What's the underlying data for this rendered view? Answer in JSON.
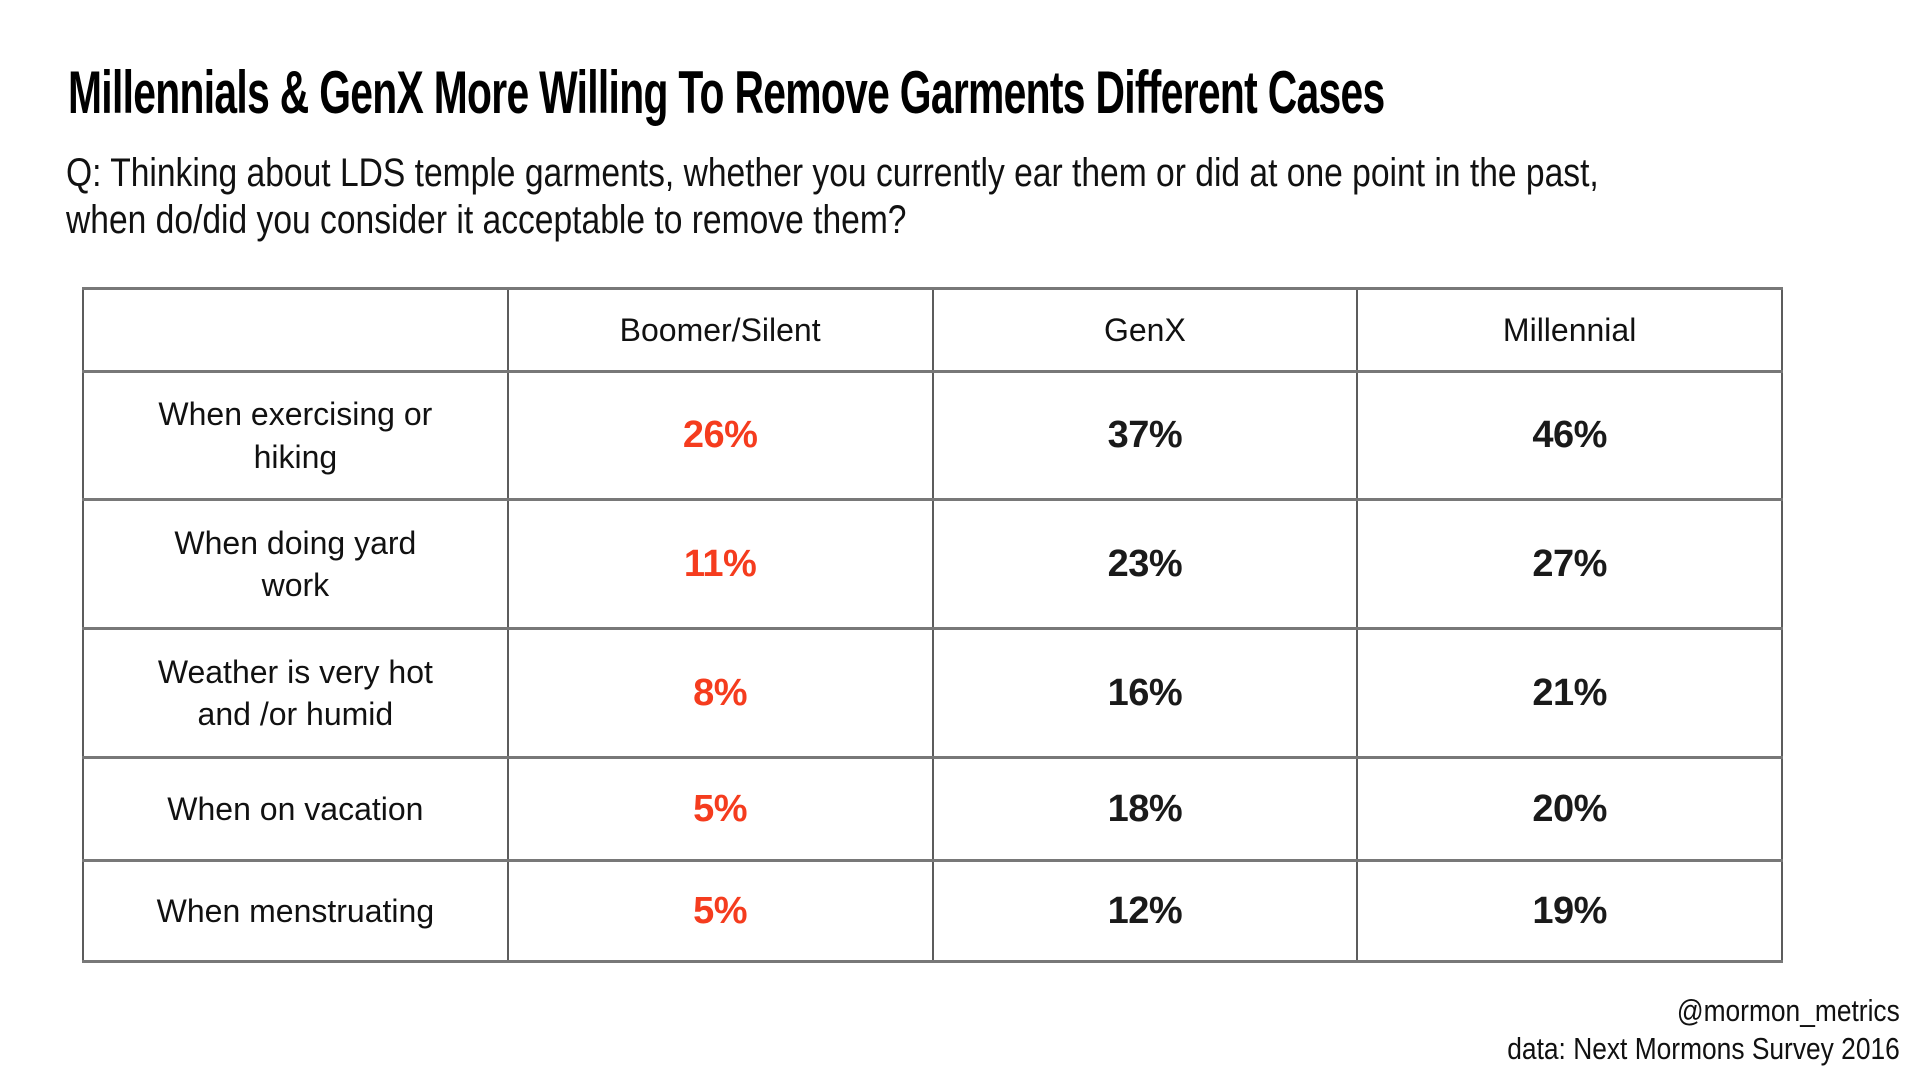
{
  "title": "Millennials & GenX More Willing To Remove Garments Different Cases",
  "question": {
    "line1": "Q: Thinking about LDS temple garments, whether you currently ear them or did at one point in the past,",
    "line2": "when do/did you consider it acceptable to remove them?"
  },
  "accent_color": "#f53c1e",
  "chart_data": {
    "type": "table",
    "title": "Millennials & GenX More Willing To Remove Garments Different Cases",
    "columns": [
      "",
      "Boomer/Silent",
      "GenX",
      "Millennial"
    ],
    "rows": [
      {
        "label": "When exercising or\nhiking",
        "values": [
          "26%",
          "37%",
          "46%"
        ]
      },
      {
        "label": "When doing yard\nwork",
        "values": [
          "11%",
          "23%",
          "27%"
        ]
      },
      {
        "label": "Weather is very hot\nand /or humid",
        "values": [
          "8%",
          "16%",
          "21%"
        ]
      },
      {
        "label": "When on vacation",
        "values": [
          "5%",
          "18%",
          "20%"
        ]
      },
      {
        "label": "When menstruating",
        "values": [
          "5%",
          "12%",
          "19%"
        ]
      }
    ],
    "highlighted_column": "Boomer/Silent",
    "highlight_color": "#f53c1e",
    "value_unit": "%"
  },
  "footer": {
    "handle": "@mormon_metrics",
    "source": "data: Next Mormons Survey 2016"
  }
}
